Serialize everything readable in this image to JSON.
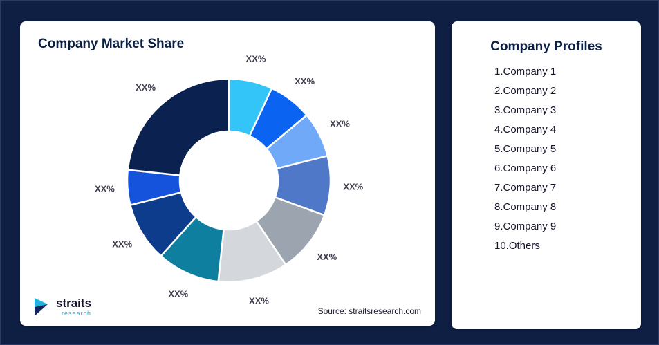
{
  "background": "#0F1F44",
  "left_card": {
    "title": "Company Market Share",
    "source": "Source: straitsresearch.com",
    "logo_text": "straits",
    "logo_sub": "research"
  },
  "right_card": {
    "title": "Company Profiles",
    "items": [
      "1.Company 1",
      "2.Company 2",
      "3.Company 3",
      "4.Company 4",
      "5.Company 5",
      "6.Company 6",
      "7.Company 7",
      "8.Company 8",
      "9.Company 9",
      "10.Others"
    ]
  },
  "chart_data": {
    "type": "pie",
    "subtype": "donut",
    "title": "Company Market Share",
    "legend_position": "none",
    "note": "all slice data labels shown as XX% placeholders, clockwise from 12 o'clock",
    "segments": [
      {
        "label": "XX%",
        "sweep_deg": 25,
        "color": "#33C5F8"
      },
      {
        "label": "XX%",
        "sweep_deg": 25,
        "color": "#0B63F2"
      },
      {
        "label": "XX%",
        "sweep_deg": 26,
        "color": "#6FA9F8"
      },
      {
        "label": "XX%",
        "sweep_deg": 34,
        "color": "#4F79C8"
      },
      {
        "label": "XX%",
        "sweep_deg": 36,
        "color": "#9CA4B0"
      },
      {
        "label": "XX%",
        "sweep_deg": 40,
        "color": "#D4D8DD"
      },
      {
        "label": "XX%",
        "sweep_deg": 36,
        "color": "#0F7FA0"
      },
      {
        "label": "XX%",
        "sweep_deg": 34,
        "color": "#0D3C8C"
      },
      {
        "label": "XX%",
        "sweep_deg": 20,
        "color": "#1653DC"
      },
      {
        "label": "XX%",
        "sweep_deg": 84,
        "color": "#0B2150"
      }
    ]
  }
}
